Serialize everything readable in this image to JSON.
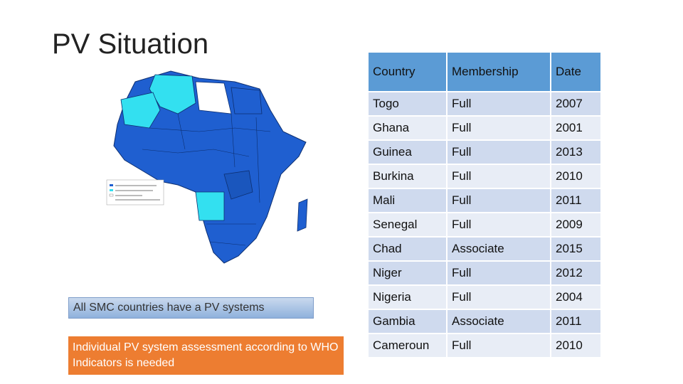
{
  "title": "PV Situation",
  "notes": {
    "blue": "All SMC countries  have a PV systems",
    "orange": "Individual PV system assessment  according to WHO Indicators  is needed"
  },
  "table": {
    "headers": [
      "Country",
      "Membership",
      "Date"
    ],
    "rows": [
      [
        "Togo",
        "Full",
        "2007"
      ],
      [
        "Ghana",
        "Full",
        "2001"
      ],
      [
        "Guinea",
        "Full",
        "2013"
      ],
      [
        "Burkina",
        "Full",
        "2010"
      ],
      [
        "Mali",
        "Full",
        "2011"
      ],
      [
        "Senegal",
        "Full",
        "2009"
      ],
      [
        "Chad",
        "Associate",
        "2015"
      ],
      [
        "Niger",
        "Full",
        "2012"
      ],
      [
        "Nigeria",
        "Full",
        "2004"
      ],
      [
        "Gambia",
        "Associate",
        "2011"
      ],
      [
        "Cameroun",
        "Full",
        "2010"
      ]
    ]
  },
  "colors": {
    "full_member": "#1f5fd0",
    "associate": "#33e0f0",
    "non_member": "#ffffff",
    "table_header": "#5b9bd5",
    "note_orange": "#ed7d31"
  }
}
